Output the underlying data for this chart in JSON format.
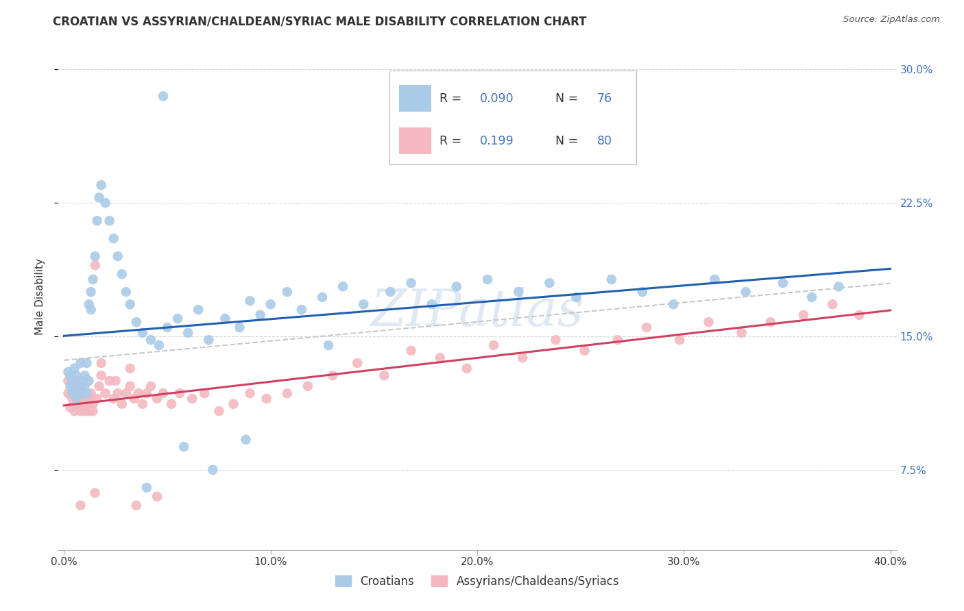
{
  "title": "CROATIAN VS ASSYRIAN/CHALDEAN/SYRIAC MALE DISABILITY CORRELATION CHART",
  "source": "Source: ZipAtlas.com",
  "ylabel": "Male Disability",
  "watermark": "ZIPatlas",
  "blue_color": "#aacbe8",
  "pink_color": "#f4b8c0",
  "line_blue": "#2060b0",
  "line_pink": "#d04060",
  "line_dashed_color": "#c8c8c8",
  "text_color": "#333333",
  "right_axis_color": "#4472c4",
  "grid_color": "#d8d8d8",
  "legend_border_color": "#cccccc",
  "xmin": 0.0,
  "xmax": 0.4,
  "ymin": 0.03,
  "ymax": 0.315,
  "yticks": [
    0.075,
    0.15,
    0.225,
    0.3
  ],
  "ytick_labels": [
    "7.5%",
    "15.0%",
    "22.5%",
    "30.0%"
  ],
  "xticks": [
    0.0,
    0.1,
    0.2,
    0.3,
    0.4
  ],
  "xtick_labels": [
    "0.0%",
    "10.0%",
    "20.0%",
    "30.0%",
    "40.0%"
  ],
  "cro_x": [
    0.002,
    0.003,
    0.003,
    0.004,
    0.004,
    0.005,
    0.005,
    0.006,
    0.006,
    0.007,
    0.007,
    0.008,
    0.008,
    0.009,
    0.009,
    0.01,
    0.01,
    0.011,
    0.011,
    0.012,
    0.012,
    0.013,
    0.013,
    0.014,
    0.015,
    0.016,
    0.017,
    0.018,
    0.02,
    0.022,
    0.024,
    0.026,
    0.028,
    0.03,
    0.032,
    0.035,
    0.038,
    0.042,
    0.046,
    0.05,
    0.055,
    0.06,
    0.065,
    0.07,
    0.078,
    0.085,
    0.09,
    0.095,
    0.1,
    0.108,
    0.115,
    0.125,
    0.135,
    0.145,
    0.158,
    0.168,
    0.178,
    0.19,
    0.205,
    0.22,
    0.235,
    0.248,
    0.265,
    0.28,
    0.295,
    0.315,
    0.33,
    0.348,
    0.362,
    0.375,
    0.128,
    0.058,
    0.072,
    0.04,
    0.088,
    0.048
  ],
  "cro_y": [
    0.13,
    0.128,
    0.122,
    0.118,
    0.125,
    0.12,
    0.132,
    0.115,
    0.128,
    0.122,
    0.118,
    0.135,
    0.12,
    0.125,
    0.118,
    0.128,
    0.122,
    0.135,
    0.118,
    0.125,
    0.168,
    0.175,
    0.165,
    0.182,
    0.195,
    0.215,
    0.228,
    0.235,
    0.225,
    0.215,
    0.205,
    0.195,
    0.185,
    0.175,
    0.168,
    0.158,
    0.152,
    0.148,
    0.145,
    0.155,
    0.16,
    0.152,
    0.165,
    0.148,
    0.16,
    0.155,
    0.17,
    0.162,
    0.168,
    0.175,
    0.165,
    0.172,
    0.178,
    0.168,
    0.175,
    0.18,
    0.168,
    0.178,
    0.182,
    0.175,
    0.18,
    0.172,
    0.182,
    0.175,
    0.168,
    0.182,
    0.175,
    0.18,
    0.172,
    0.178,
    0.145,
    0.088,
    0.075,
    0.065,
    0.092,
    0.285
  ],
  "ass_x": [
    0.002,
    0.002,
    0.003,
    0.003,
    0.004,
    0.004,
    0.005,
    0.005,
    0.006,
    0.006,
    0.007,
    0.007,
    0.008,
    0.008,
    0.009,
    0.009,
    0.01,
    0.01,
    0.011,
    0.011,
    0.012,
    0.012,
    0.013,
    0.013,
    0.014,
    0.014,
    0.015,
    0.016,
    0.017,
    0.018,
    0.02,
    0.022,
    0.024,
    0.026,
    0.028,
    0.03,
    0.032,
    0.034,
    0.036,
    0.038,
    0.04,
    0.042,
    0.045,
    0.048,
    0.052,
    0.056,
    0.062,
    0.068,
    0.075,
    0.082,
    0.09,
    0.098,
    0.108,
    0.118,
    0.13,
    0.142,
    0.155,
    0.168,
    0.182,
    0.195,
    0.208,
    0.222,
    0.238,
    0.252,
    0.268,
    0.282,
    0.298,
    0.312,
    0.328,
    0.342,
    0.358,
    0.372,
    0.385,
    0.018,
    0.025,
    0.032,
    0.015,
    0.008,
    0.035,
    0.045
  ],
  "ass_y": [
    0.118,
    0.125,
    0.11,
    0.128,
    0.115,
    0.122,
    0.108,
    0.118,
    0.112,
    0.125,
    0.118,
    0.115,
    0.108,
    0.122,
    0.115,
    0.118,
    0.112,
    0.108,
    0.118,
    0.115,
    0.112,
    0.108,
    0.115,
    0.118,
    0.112,
    0.108,
    0.19,
    0.115,
    0.122,
    0.128,
    0.118,
    0.125,
    0.115,
    0.118,
    0.112,
    0.118,
    0.122,
    0.115,
    0.118,
    0.112,
    0.118,
    0.122,
    0.115,
    0.118,
    0.112,
    0.118,
    0.115,
    0.118,
    0.108,
    0.112,
    0.118,
    0.115,
    0.118,
    0.122,
    0.128,
    0.135,
    0.128,
    0.142,
    0.138,
    0.132,
    0.145,
    0.138,
    0.148,
    0.142,
    0.148,
    0.155,
    0.148,
    0.158,
    0.152,
    0.158,
    0.162,
    0.168,
    0.162,
    0.135,
    0.125,
    0.132,
    0.062,
    0.055,
    0.055,
    0.06
  ]
}
